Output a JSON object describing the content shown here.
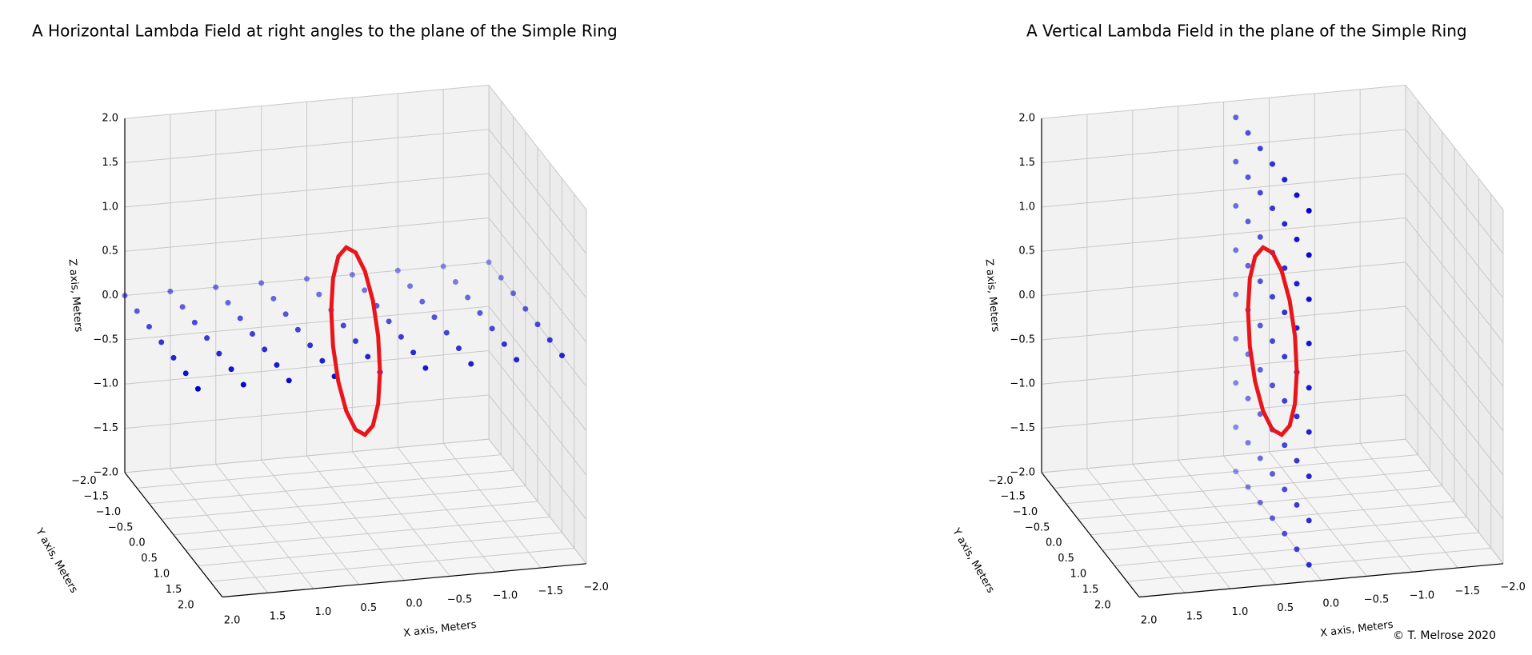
{
  "chart_data": [
    {
      "type": "scatter3d",
      "title": "A Horizontal Lambda Field at right angles to the plane of the Simple Ring",
      "xlabel": "X axis, Meters",
      "ylabel": "Y axis, Meters",
      "zlabel": "Z axis, Meters",
      "xlim": [
        -2,
        2
      ],
      "ylim": [
        -2,
        2
      ],
      "zlim": [
        -2,
        2
      ],
      "xticks": [
        {
          "value": -2,
          "label": "−2.0"
        },
        {
          "value": -1.5,
          "label": "−1.5"
        },
        {
          "value": -1,
          "label": "−1.0"
        },
        {
          "value": -0.5,
          "label": "−0.5"
        },
        {
          "value": 0,
          "label": "0.0"
        },
        {
          "value": 0.5,
          "label": "0.5"
        },
        {
          "value": 1,
          "label": "1.0"
        },
        {
          "value": 1.5,
          "label": "1.5"
        },
        {
          "value": 2,
          "label": "2.0"
        }
      ],
      "yticks": [
        {
          "value": -2,
          "label": "−2.0"
        },
        {
          "value": -1.5,
          "label": "−1.5"
        },
        {
          "value": -1,
          "label": "−1.0"
        },
        {
          "value": -0.5,
          "label": "−0.5"
        },
        {
          "value": 0,
          "label": "0.0"
        },
        {
          "value": 0.5,
          "label": "0.5"
        },
        {
          "value": 1,
          "label": "1.0"
        },
        {
          "value": 1.5,
          "label": "1.5"
        },
        {
          "value": 2,
          "label": "2.0"
        }
      ],
      "zticks": [
        {
          "value": -2,
          "label": "−2.0"
        },
        {
          "value": -1.5,
          "label": "−1.5"
        },
        {
          "value": -1,
          "label": "−1.0"
        },
        {
          "value": -0.5,
          "label": "−0.5"
        },
        {
          "value": 0,
          "label": "0.0"
        },
        {
          "value": 0.5,
          "label": "0.5"
        },
        {
          "value": 1,
          "label": "1.0"
        },
        {
          "value": 1.5,
          "label": "1.5"
        },
        {
          "value": 2,
          "label": "2.0"
        }
      ],
      "grid": true,
      "points": {
        "color": "#0000cc",
        "x": [
          -2,
          -2,
          -2,
          -2,
          -2,
          -2,
          -2,
          -1.5,
          -1.5,
          -1.5,
          -1.5,
          -1.5,
          -1.5,
          -1.5,
          -1,
          -1,
          -1,
          -1,
          -1,
          -1,
          -1,
          -0.5,
          -0.5,
          -0.5,
          -0.5,
          -0.5,
          -0.5,
          -0.5,
          0,
          0,
          0,
          0,
          0,
          0,
          0,
          0.5,
          0.5,
          0.5,
          0.5,
          0.5,
          0.5,
          0.5,
          1,
          1,
          1,
          1,
          1,
          1,
          1,
          1.5,
          1.5,
          1.5,
          1.5,
          1.5,
          1.5,
          1.5,
          2,
          2,
          2,
          2,
          2,
          2,
          2
        ],
        "y": [
          -2,
          -1.5,
          -1,
          -0.5,
          0,
          0.5,
          1,
          -2,
          -1.5,
          -1,
          -0.5,
          0,
          0.5,
          1,
          -2,
          -1.5,
          -1,
          -0.5,
          0,
          0.5,
          1,
          -2,
          -1.5,
          -1,
          -0.5,
          0,
          0.5,
          1,
          -2,
          -1.5,
          -1,
          -0.5,
          0,
          0.5,
          1,
          -2,
          -1.5,
          -1,
          -0.5,
          0,
          0.5,
          1,
          -2,
          -1.5,
          -1,
          -0.5,
          0,
          0.5,
          1,
          -2,
          -1.5,
          -1,
          -0.5,
          0,
          0.5,
          1,
          -2,
          -1.5,
          -1,
          -0.5,
          0,
          0.5,
          1
        ],
        "z": [
          0,
          0,
          0,
          0,
          0,
          0,
          0,
          0,
          0,
          0,
          0,
          0,
          0,
          0,
          0,
          0,
          0,
          0,
          0,
          0,
          0,
          0,
          0,
          0,
          0,
          0,
          0,
          0,
          0,
          0,
          0,
          0,
          0,
          0,
          0,
          0,
          0,
          0,
          0,
          0,
          0,
          0,
          0,
          0,
          0,
          0,
          0,
          0,
          0,
          0,
          0,
          0,
          0,
          0,
          0,
          0,
          0,
          0,
          0,
          0,
          0,
          0,
          0
        ]
      },
      "ring": {
        "color": "#e8161b",
        "x": [
          0,
          0,
          0,
          0,
          0,
          0,
          0,
          0,
          0,
          0,
          0,
          0,
          0,
          0,
          0,
          0
        ],
        "y": [
          1,
          0.924,
          0.707,
          0.383,
          0,
          -0.383,
          -0.707,
          -0.924,
          -1,
          -0.924,
          -0.707,
          -0.383,
          0,
          0.383,
          0.707,
          0.924
        ],
        "z": [
          0,
          0.383,
          0.707,
          0.924,
          1,
          0.924,
          0.707,
          0.383,
          0,
          -0.383,
          -0.707,
          -0.924,
          -1,
          -0.924,
          -0.707,
          -0.383
        ]
      }
    },
    {
      "type": "scatter3d",
      "title": "A Vertical Lambda Field in the plane of the Simple Ring",
      "xlabel": "X axis, Meters",
      "ylabel": "Y axis, Meters",
      "zlabel": "Z axis, Meters",
      "xlim": [
        -2,
        2
      ],
      "ylim": [
        -2,
        2
      ],
      "zlim": [
        -2,
        2
      ],
      "xticks": [
        {
          "value": -2,
          "label": "−2.0"
        },
        {
          "value": -1.5,
          "label": "−1.5"
        },
        {
          "value": -1,
          "label": "−1.0"
        },
        {
          "value": -0.5,
          "label": "−0.5"
        },
        {
          "value": 0,
          "label": "0.0"
        },
        {
          "value": 0.5,
          "label": "0.5"
        },
        {
          "value": 1,
          "label": "1.0"
        },
        {
          "value": 1.5,
          "label": "1.5"
        },
        {
          "value": 2,
          "label": "2.0"
        }
      ],
      "yticks": [
        {
          "value": -2,
          "label": "−2.0"
        },
        {
          "value": -1.5,
          "label": "−1.5"
        },
        {
          "value": -1,
          "label": "−1.0"
        },
        {
          "value": -0.5,
          "label": "−0.5"
        },
        {
          "value": 0,
          "label": "0.0"
        },
        {
          "value": 0.5,
          "label": "0.5"
        },
        {
          "value": 1,
          "label": "1.0"
        },
        {
          "value": 1.5,
          "label": "1.5"
        },
        {
          "value": 2,
          "label": "2.0"
        }
      ],
      "zticks": [
        {
          "value": -2,
          "label": "−2.0"
        },
        {
          "value": -1.5,
          "label": "−1.5"
        },
        {
          "value": -1,
          "label": "−1.0"
        },
        {
          "value": -0.5,
          "label": "−0.5"
        },
        {
          "value": 0,
          "label": "0.0"
        },
        {
          "value": 0.5,
          "label": "0.5"
        },
        {
          "value": 1,
          "label": "1.0"
        },
        {
          "value": 1.5,
          "label": "1.5"
        },
        {
          "value": 2,
          "label": "2.0"
        }
      ],
      "grid": true,
      "points": {
        "color": "#0000cc",
        "x": [
          0,
          0,
          0,
          0,
          0,
          0,
          0,
          0,
          0,
          0,
          0,
          0,
          0,
          0,
          0,
          0,
          0,
          0,
          0,
          0,
          0,
          0,
          0,
          0,
          0,
          0,
          0,
          0,
          0,
          0,
          0,
          0,
          0,
          0,
          0,
          0,
          0,
          0,
          0,
          0,
          0,
          0,
          0,
          0,
          0,
          0,
          0,
          0,
          0,
          0,
          0,
          0,
          0,
          0,
          0,
          0,
          0,
          0,
          0,
          0,
          0,
          0,
          0
        ],
        "y": [
          -1.5,
          -1.5,
          -1.5,
          -1.5,
          -1.5,
          -1.5,
          -1.5,
          -1.5,
          -1.5,
          -1,
          -1,
          -1,
          -1,
          -1,
          -1,
          -1,
          -1,
          -1,
          -0.5,
          -0.5,
          -0.5,
          -0.5,
          -0.5,
          -0.5,
          -0.5,
          -0.5,
          -0.5,
          0,
          0,
          0,
          0,
          0,
          0,
          0,
          0,
          0,
          0.5,
          0.5,
          0.5,
          0.5,
          0.5,
          0.5,
          0.5,
          0.5,
          0.5,
          1,
          1,
          1,
          1,
          1,
          1,
          1,
          1,
          1,
          1.5,
          1.5,
          1.5,
          1.5,
          1.5,
          1.5,
          1.5,
          1.5,
          1.5
        ],
        "z": [
          -2,
          -1.5,
          -1,
          -0.5,
          0,
          0.5,
          1,
          1.5,
          2,
          -2,
          -1.5,
          -1,
          -0.5,
          0,
          0.5,
          1,
          1.5,
          2,
          -2,
          -1.5,
          -1,
          -0.5,
          0,
          0.5,
          1,
          1.5,
          2,
          -2,
          -1.5,
          -1,
          -0.5,
          0,
          0.5,
          1,
          1.5,
          2,
          -2,
          -1.5,
          -1,
          -0.5,
          0,
          0.5,
          1,
          1.5,
          2,
          -2,
          -1.5,
          -1,
          -0.5,
          0,
          0.5,
          1,
          1.5,
          2,
          -2,
          -1.5,
          -1,
          -0.5,
          0,
          0.5,
          1,
          1.5,
          2
        ]
      },
      "ring": {
        "color": "#e8161b",
        "x": [
          0,
          0,
          0,
          0,
          0,
          0,
          0,
          0,
          0,
          0,
          0,
          0,
          0,
          0,
          0,
          0
        ],
        "y": [
          1,
          0.924,
          0.707,
          0.383,
          0,
          -0.383,
          -0.707,
          -0.924,
          -1,
          -0.924,
          -0.707,
          -0.383,
          0,
          0.383,
          0.707,
          0.924
        ],
        "z": [
          0,
          0.383,
          0.707,
          0.924,
          1,
          0.924,
          0.707,
          0.383,
          0,
          -0.383,
          -0.707,
          -0.924,
          -1,
          -0.924,
          -0.707,
          -0.383
        ]
      }
    }
  ],
  "footer": "© T. Melrose 2020"
}
